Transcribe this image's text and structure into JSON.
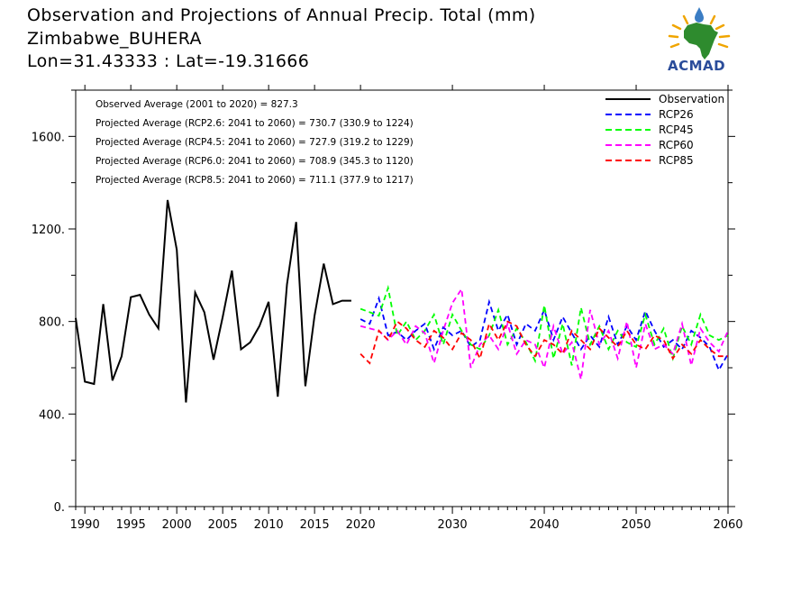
{
  "header": {
    "title": "Observation and Projections of Annual Precip. Total (mm)",
    "location": "Zimbabwe_BUHERA",
    "coordinates": "Lon=31.43333 : Lat=-19.31666"
  },
  "logo": {
    "text": "ACMAD"
  },
  "chart_data": {
    "type": "line",
    "title": "Observation and Projections of Annual Precip. Total (mm)",
    "xlabel": "",
    "ylabel": "",
    "xlim": [
      1989,
      2060
    ],
    "ylim": [
      0,
      1800
    ],
    "x_ticks": [
      {
        "value": 1990,
        "label": "1990"
      },
      {
        "value": 1995,
        "label": "1995"
      },
      {
        "value": 2000,
        "label": "2000"
      },
      {
        "value": 2005,
        "label": "2005"
      },
      {
        "value": 2010,
        "label": "2010"
      },
      {
        "value": 2015,
        "label": "2015"
      },
      {
        "value": 2020,
        "label": "2020"
      },
      {
        "value": 2030,
        "label": "2030"
      },
      {
        "value": 2040,
        "label": "2040"
      },
      {
        "value": 2050,
        "label": "2050"
      },
      {
        "value": 2060,
        "label": "2060"
      }
    ],
    "y_ticks": [
      {
        "value": 0,
        "label": "0."
      },
      {
        "value": 400,
        "label": "400."
      },
      {
        "value": 800,
        "label": "800."
      },
      {
        "value": 1200,
        "label": "1200."
      },
      {
        "value": 1600,
        "label": "1600."
      }
    ],
    "grid": false,
    "legend_position": "top-right",
    "annotations": [
      "Observed Average (2001 to 2020) = 827.3",
      "Projected Average (RCP2.6: 2041 to 2060) = 730.7 (330.9 to 1224)",
      "Projected Average (RCP4.5: 2041 to 2060) = 727.9 (319.2 to 1229)",
      "Projected Average (RCP6.0: 2041 to 2060) = 708.9 (345.3 to 1120)",
      "Projected Average (RCP8.5: 2041 to 2060) = 711.1 (377.9 to 1217)"
    ],
    "series": [
      {
        "name": "Observation",
        "color": "#000000",
        "dash": "solid",
        "x": [
          1989,
          1990,
          1991,
          1992,
          1993,
          1994,
          1995,
          1996,
          1997,
          1998,
          1999,
          2000,
          2001,
          2002,
          2003,
          2004,
          2005,
          2006,
          2007,
          2008,
          2009,
          2010,
          2011,
          2012,
          2013,
          2014,
          2015,
          2016,
          2017,
          2018,
          2019
        ],
        "y": [
          815,
          540,
          530,
          875,
          545,
          650,
          905,
          915,
          830,
          770,
          1325,
          1110,
          450,
          925,
          840,
          635,
          820,
          1020,
          680,
          710,
          780,
          885,
          475,
          960,
          1230,
          520,
          825,
          1050,
          875,
          890,
          890
        ]
      },
      {
        "name": "RCP26",
        "color": "#0000ff",
        "dash": "dashed",
        "x": [
          2020,
          2021,
          2022,
          2023,
          2024,
          2025,
          2026,
          2027,
          2028,
          2029,
          2030,
          2031,
          2032,
          2033,
          2034,
          2035,
          2036,
          2037,
          2038,
          2039,
          2040,
          2041,
          2042,
          2043,
          2044,
          2045,
          2046,
          2047,
          2048,
          2049,
          2050,
          2051,
          2052,
          2053,
          2054,
          2055,
          2056,
          2057,
          2058,
          2059,
          2060
        ],
        "y": [
          810,
          790,
          900,
          740,
          755,
          720,
          760,
          790,
          680,
          775,
          740,
          760,
          690,
          720,
          885,
          760,
          830,
          700,
          790,
          760,
          850,
          720,
          820,
          750,
          680,
          740,
          690,
          820,
          700,
          780,
          720,
          845,
          760,
          690,
          720,
          680,
          760,
          730,
          690,
          590,
          660
        ]
      },
      {
        "name": "RCP45",
        "color": "#00ff00",
        "dash": "dashed",
        "x": [
          2020,
          2021,
          2022,
          2023,
          2024,
          2025,
          2026,
          2027,
          2028,
          2029,
          2030,
          2031,
          2032,
          2033,
          2034,
          2035,
          2036,
          2037,
          2038,
          2039,
          2040,
          2041,
          2042,
          2043,
          2044,
          2045,
          2046,
          2047,
          2048,
          2049,
          2050,
          2051,
          2052,
          2053,
          2054,
          2055,
          2056,
          2057,
          2058,
          2059,
          2060
        ],
        "y": [
          855,
          840,
          825,
          945,
          740,
          800,
          720,
          760,
          830,
          700,
          830,
          760,
          700,
          680,
          740,
          850,
          700,
          770,
          710,
          630,
          870,
          640,
          790,
          610,
          860,
          700,
          780,
          680,
          760,
          710,
          690,
          830,
          700,
          770,
          640,
          780,
          700,
          830,
          740,
          720,
          740
        ]
      },
      {
        "name": "RCP60",
        "color": "#ff00ff",
        "dash": "dashed",
        "x": [
          2020,
          2021,
          2022,
          2023,
          2024,
          2025,
          2026,
          2027,
          2028,
          2029,
          2030,
          2031,
          2032,
          2033,
          2034,
          2035,
          2036,
          2037,
          2038,
          2039,
          2040,
          2041,
          2042,
          2043,
          2044,
          2045,
          2046,
          2047,
          2048,
          2049,
          2050,
          2051,
          2052,
          2053,
          2054,
          2055,
          2056,
          2057,
          2058,
          2059,
          2060
        ],
        "y": [
          780,
          770,
          760,
          720,
          760,
          700,
          780,
          750,
          620,
          760,
          880,
          940,
          600,
          700,
          740,
          680,
          790,
          660,
          720,
          700,
          600,
          780,
          660,
          710,
          550,
          850,
          700,
          760,
          640,
          800,
          600,
          790,
          680,
          700,
          660,
          790,
          610,
          770,
          710,
          670,
          760
        ]
      },
      {
        "name": "RCP85",
        "color": "#ff0000",
        "dash": "dashed",
        "x": [
          2020,
          2021,
          2022,
          2023,
          2024,
          2025,
          2026,
          2027,
          2028,
          2029,
          2030,
          2031,
          2032,
          2033,
          2034,
          2035,
          2036,
          2037,
          2038,
          2039,
          2040,
          2041,
          2042,
          2043,
          2044,
          2045,
          2046,
          2047,
          2048,
          2049,
          2050,
          2051,
          2052,
          2053,
          2054,
          2055,
          2056,
          2057,
          2058,
          2059,
          2060
        ],
        "y": [
          660,
          620,
          760,
          720,
          800,
          770,
          720,
          690,
          760,
          730,
          680,
          750,
          720,
          640,
          790,
          720,
          800,
          780,
          700,
          650,
          720,
          700,
          660,
          760,
          720,
          680,
          770,
          730,
          690,
          760,
          700,
          680,
          740,
          720,
          640,
          700,
          660,
          720,
          680,
          650,
          650
        ]
      }
    ]
  }
}
